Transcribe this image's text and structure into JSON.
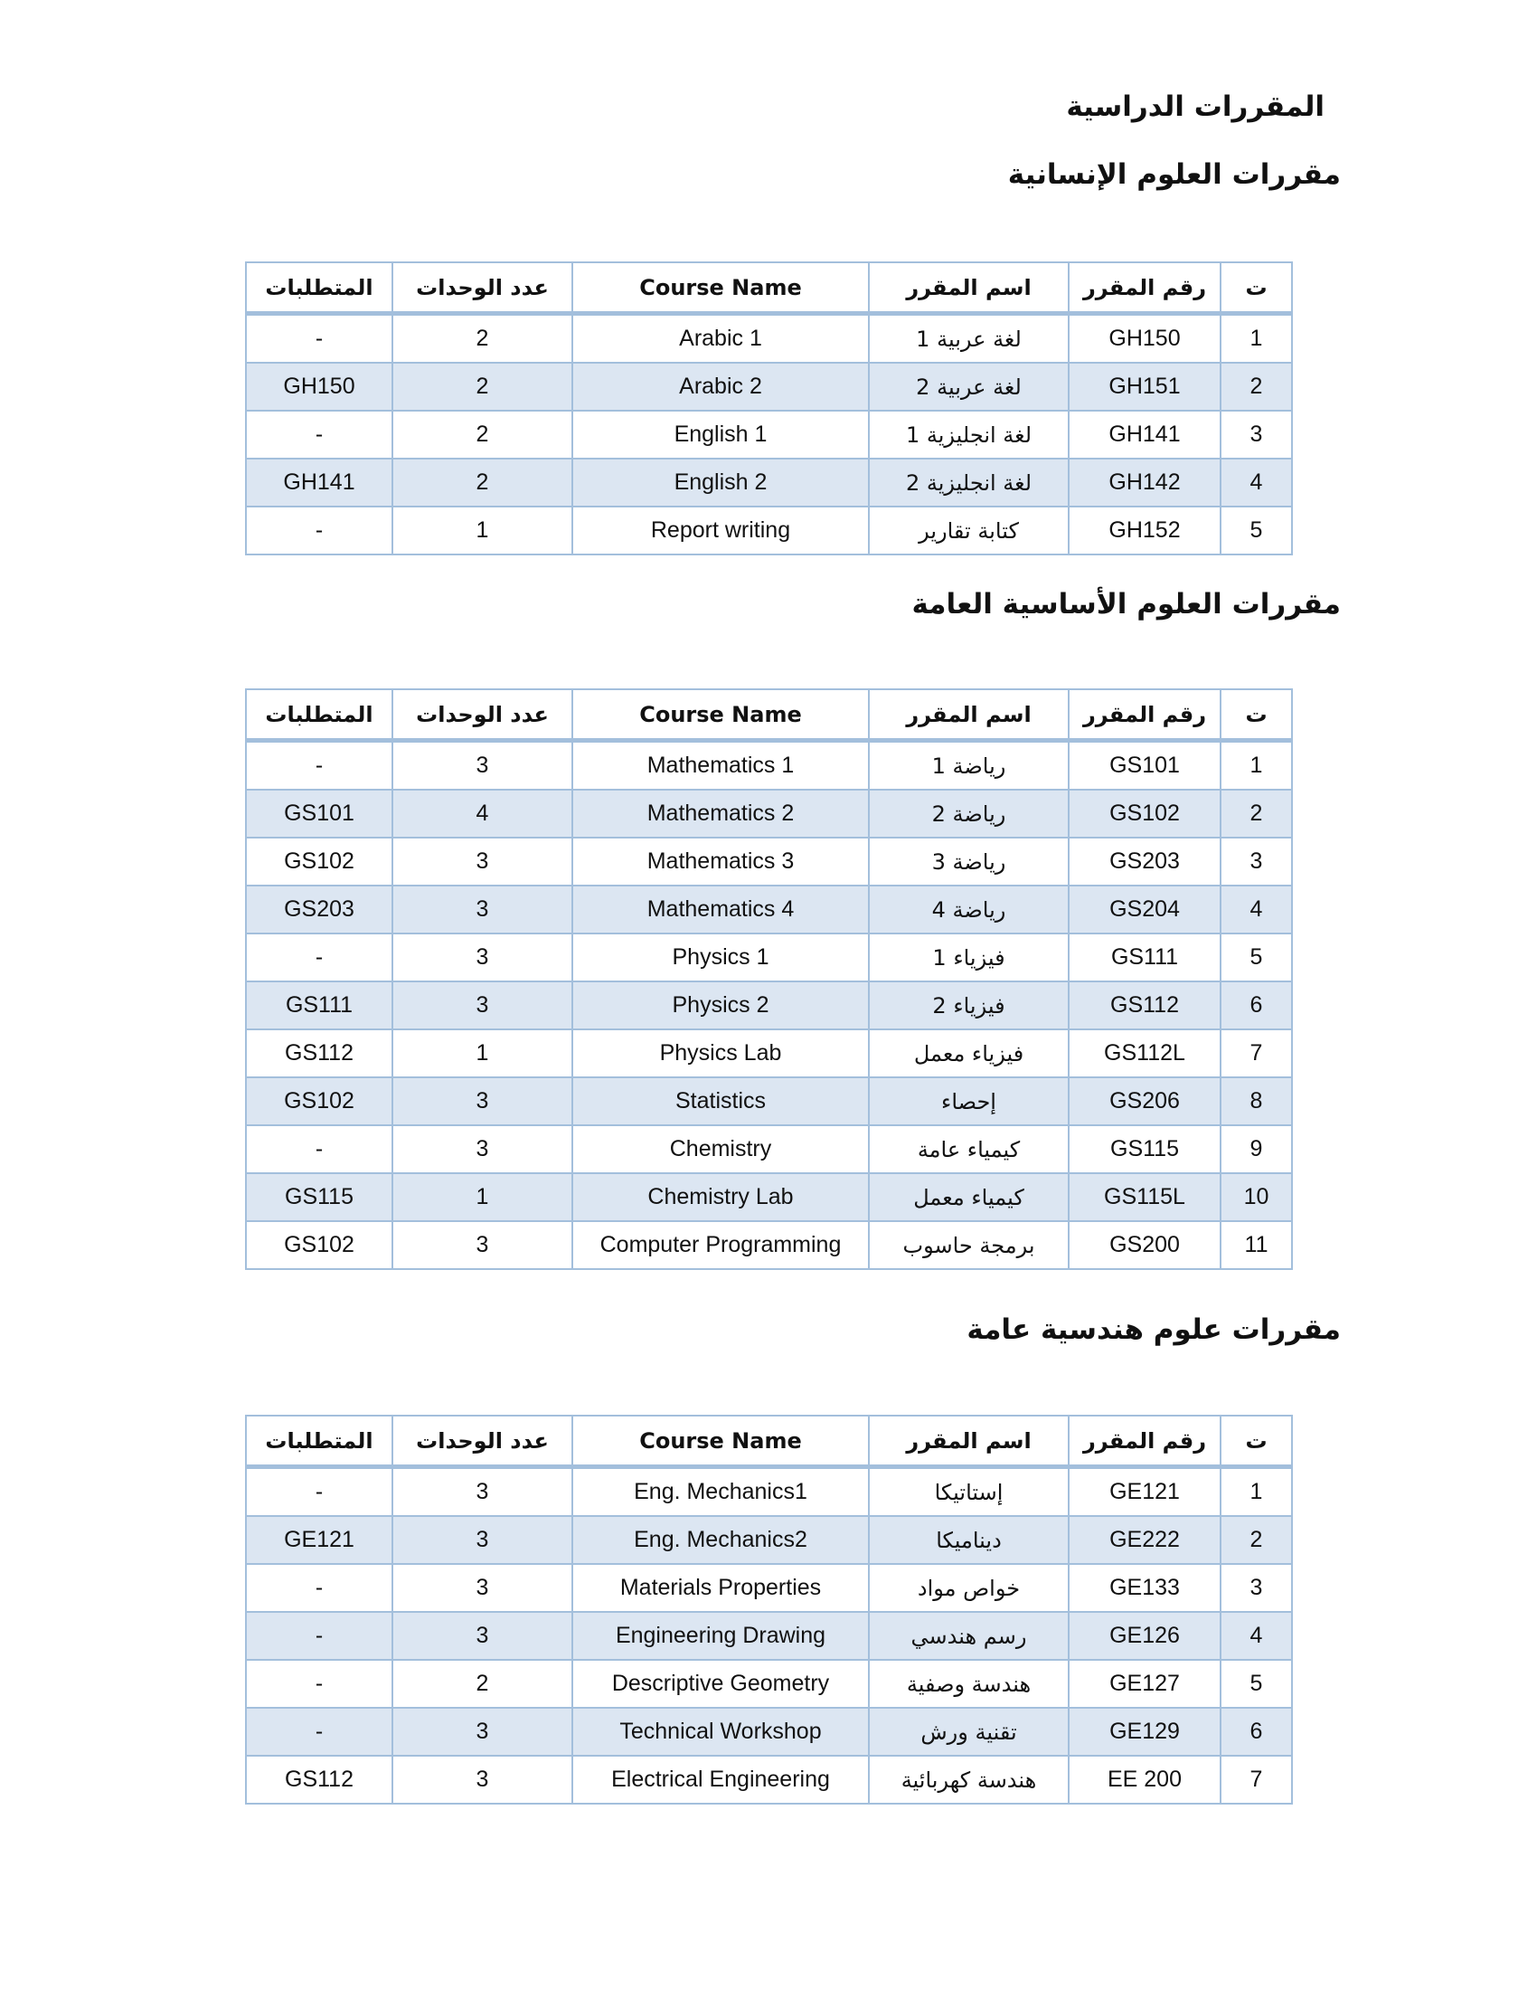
{
  "title": "المقررات الدراسية",
  "headers": [
    "ت",
    "رقم المقرر",
    "اسم المقرر",
    "Course Name",
    "عدد الوحدات",
    "المتطلبات"
  ],
  "colors": {
    "border": "#a3bfdc",
    "alt_row": "#dce6f2"
  },
  "sections": [
    {
      "title": "مقررات العلوم الإنسانية",
      "rows": [
        {
          "no": "1",
          "code": "GH150",
          "ar": "لغة عربية 1",
          "en": "Arabic 1",
          "units": "2",
          "prereq": "-"
        },
        {
          "no": "2",
          "code": "GH151",
          "ar": "لغة عربية 2",
          "en": "Arabic 2",
          "units": "2",
          "prereq": "GH150"
        },
        {
          "no": "3",
          "code": "GH141",
          "ar": "لغة انجليزية 1",
          "en": "English 1",
          "units": "2",
          "prereq": "-"
        },
        {
          "no": "4",
          "code": "GH142",
          "ar": "لغة انجليزية 2",
          "en": "English 2",
          "units": "2",
          "prereq": "GH141"
        },
        {
          "no": "5",
          "code": "GH152",
          "ar": "كتابة تقارير",
          "en": "Report writing",
          "units": "1",
          "prereq": "-"
        }
      ]
    },
    {
      "title": "مقررات العلوم الأساسية العامة",
      "rows": [
        {
          "no": "1",
          "code": "GS101",
          "ar": "رياضة 1",
          "en": "Mathematics 1",
          "units": "3",
          "prereq": "-"
        },
        {
          "no": "2",
          "code": "GS102",
          "ar": "رياضة 2",
          "en": "Mathematics 2",
          "units": "4",
          "prereq": "GS101"
        },
        {
          "no": "3",
          "code": "GS203",
          "ar": "رياضة 3",
          "en": "Mathematics 3",
          "units": "3",
          "prereq": "GS102"
        },
        {
          "no": "4",
          "code": "GS204",
          "ar": "رياضة 4",
          "en": "Mathematics 4",
          "units": "3",
          "prereq": "GS203"
        },
        {
          "no": "5",
          "code": "GS111",
          "ar": "فيزياء 1",
          "en": "Physics 1",
          "units": "3",
          "prereq": "-"
        },
        {
          "no": "6",
          "code": "GS112",
          "ar": "فيزياء 2",
          "en": "Physics 2",
          "units": "3",
          "prereq": "GS111"
        },
        {
          "no": "7",
          "code": "GS112L",
          "ar": "فيزياء معمل",
          "en": "Physics Lab",
          "units": "1",
          "prereq": "GS112"
        },
        {
          "no": "8",
          "code": "GS206",
          "ar": "إحصاء",
          "en": "Statistics",
          "units": "3",
          "prereq": "GS102"
        },
        {
          "no": "9",
          "code": "GS115",
          "ar": "كيمياء عامة",
          "en": "Chemistry",
          "units": "3",
          "prereq": "-"
        },
        {
          "no": "10",
          "code": "GS115L",
          "ar": "كيمياء معمل",
          "en": "Chemistry Lab",
          "units": "1",
          "prereq": "GS115"
        },
        {
          "no": "11",
          "code": "GS200",
          "ar": "برمجة حاسوب",
          "en": "Computer Programming",
          "units": "3",
          "prereq": "GS102"
        }
      ]
    },
    {
      "title": "مقررات علوم هندسية عامة",
      "rows": [
        {
          "no": "1",
          "code": "GE121",
          "ar": "إستاتيكا",
          "en": "Eng. Mechanics1",
          "units": "3",
          "prereq": "-"
        },
        {
          "no": "2",
          "code": "GE222",
          "ar": "ديناميكا",
          "en": "Eng. Mechanics2",
          "units": "3",
          "prereq": "GE121"
        },
        {
          "no": "3",
          "code": "GE133",
          "ar": "خواص مواد",
          "en": "Materials Properties",
          "units": "3",
          "prereq": "-"
        },
        {
          "no": "4",
          "code": "GE126",
          "ar": "رسم هندسي",
          "en": "Engineering Drawing",
          "units": "3",
          "prereq": "-"
        },
        {
          "no": "5",
          "code": "GE127",
          "ar": "هندسة وصفية",
          "en": "Descriptive Geometry",
          "units": "2",
          "prereq": "-"
        },
        {
          "no": "6",
          "code": "GE129",
          "ar": "تقنية ورش",
          "en": "Technical Workshop",
          "units": "3",
          "prereq": "-"
        },
        {
          "no": "7",
          "code": "EE 200",
          "ar": "هندسة كهربائية",
          "en": "Electrical Engineering",
          "units": "3",
          "prereq": "GS112"
        }
      ]
    }
  ]
}
